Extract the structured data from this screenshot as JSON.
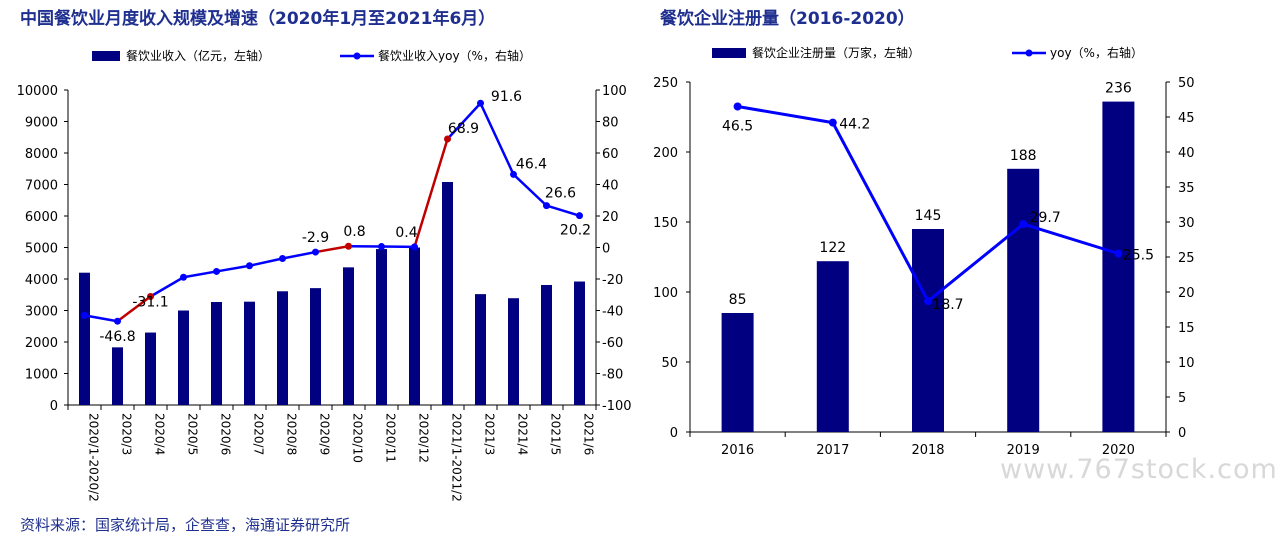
{
  "source_text": "资料来源：国家统计局，企查查，海通证券研究所",
  "watermark_text": "www.767stock.com",
  "chart_data": [
    {
      "type": "bar+line",
      "title": "中国餐饮业月度收入规模及增速（2020年1月至2021年6月）",
      "categories": [
        "2020/1-2020/2",
        "2020/3",
        "2020/4",
        "2020/5",
        "2020/6",
        "2020/7",
        "2020/8",
        "2020/9",
        "2020/10",
        "2020/11",
        "2020/12",
        "2021/1-2021/2",
        "2021/3",
        "2021/4",
        "2021/5",
        "2021/6"
      ],
      "series": [
        {
          "name": "餐饮业收入（亿元，左轴）",
          "kind": "bar",
          "axis": "left",
          "color": "#000080",
          "values": [
            4200,
            1830,
            2300,
            3000,
            3270,
            3280,
            3610,
            3710,
            4370,
            4950,
            5000,
            7080,
            3520,
            3390,
            3810,
            3920
          ]
        },
        {
          "name": "餐饮业收入yoy（%，右轴）",
          "kind": "line",
          "axis": "right",
          "color": "#0000ff",
          "highlight_color": "#c00000",
          "values": [
            -43.1,
            -46.8,
            -31.1,
            -18.9,
            -15.2,
            -11.6,
            -7.0,
            -2.9,
            0.8,
            0.6,
            0.4,
            68.9,
            91.6,
            46.4,
            26.6,
            20.2
          ]
        }
      ],
      "data_labels": [
        {
          "index": 1,
          "text": "-46.8"
        },
        {
          "index": 2,
          "text": "-31.1"
        },
        {
          "index": 7,
          "text": "-2.9"
        },
        {
          "index": 8,
          "text": "0.8"
        },
        {
          "index": 10,
          "text": "0.4"
        },
        {
          "index": 11,
          "text": "68.9"
        },
        {
          "index": 12,
          "text": "91.6"
        },
        {
          "index": 13,
          "text": "46.4"
        },
        {
          "index": 14,
          "text": "26.6"
        },
        {
          "index": 15,
          "text": "20.2"
        }
      ],
      "highlight_segments": [
        [
          1,
          2
        ],
        [
          7,
          8
        ],
        [
          10,
          11
        ]
      ],
      "left_ylim": [
        0,
        10000
      ],
      "left_ticks": [
        0,
        1000,
        2000,
        3000,
        4000,
        5000,
        6000,
        7000,
        8000,
        9000,
        10000
      ],
      "right_ylim": [
        -100,
        100
      ],
      "right_ticks": [
        -100,
        -80,
        -60,
        -40,
        -20,
        0,
        20,
        40,
        60,
        80,
        100
      ],
      "legend_position": "top"
    },
    {
      "type": "bar+line",
      "title": "餐饮企业注册量（2016-2020）",
      "categories": [
        "2016",
        "2017",
        "2018",
        "2019",
        "2020"
      ],
      "series": [
        {
          "name": "餐饮企业注册量（万家，左轴）",
          "kind": "bar",
          "axis": "left",
          "color": "#000080",
          "values": [
            85,
            122,
            145,
            188,
            236
          ]
        },
        {
          "name": "yoy（%，右轴）",
          "kind": "line",
          "axis": "right",
          "color": "#0000ff",
          "values": [
            46.5,
            44.2,
            18.7,
            29.7,
            25.5
          ]
        }
      ],
      "bar_labels": [
        "85",
        "122",
        "145",
        "188",
        "236"
      ],
      "line_labels": [
        "46.5",
        "44.2",
        "18.7",
        "29.7",
        "25.5"
      ],
      "left_ylim": [
        0,
        250
      ],
      "left_ticks": [
        0,
        50,
        100,
        150,
        200,
        250
      ],
      "right_ylim": [
        0,
        50
      ],
      "right_ticks": [
        0,
        5,
        10,
        15,
        20,
        25,
        30,
        35,
        40,
        45,
        50
      ],
      "legend_position": "top"
    }
  ]
}
